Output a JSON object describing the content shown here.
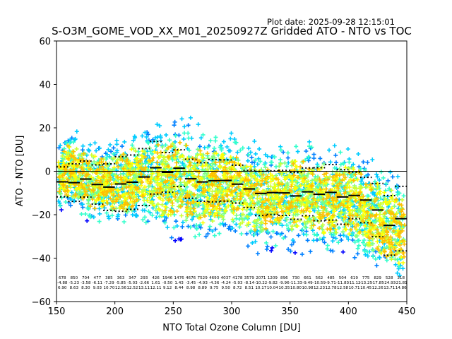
{
  "chart_data": {
    "type": "scatter",
    "title": "S-O3M_GOME_VOD_XX_M01_20250927Z Gridded ATO - NTO vs TOC",
    "subtitle": "Plot date: 2025-09-28 12:15:01",
    "xlabel": "NTO Total Ozone Column [DU]",
    "ylabel": "ATO - NTO [DU]",
    "xlim": [
      150,
      450
    ],
    "ylim": [
      -60,
      60
    ],
    "xticks": [
      150,
      200,
      250,
      300,
      350,
      400,
      450
    ],
    "yticks": [
      -60,
      -40,
      -20,
      0,
      20,
      40,
      60
    ],
    "grid": false,
    "reference_line_y": 0,
    "bin_width": 10,
    "bins": {
      "x_start": [
        150,
        160,
        170,
        180,
        190,
        200,
        210,
        220,
        230,
        240,
        250,
        260,
        270,
        280,
        290,
        300,
        310,
        320,
        330,
        340,
        350,
        360,
        370,
        380,
        390,
        400,
        410,
        420,
        430,
        440
      ],
      "counts": [
        "678",
        "850",
        "704",
        "477",
        "385",
        "363",
        "347",
        "293",
        "426",
        "1946",
        "1476",
        "4676",
        "7529",
        "4693",
        "4037",
        "4178",
        "3579",
        "2071",
        "1209",
        "896",
        "730",
        "661",
        "562",
        "485",
        "504",
        "619",
        "775",
        "829",
        "528",
        "318"
      ],
      "means": [
        "-4.88",
        "-5.23",
        "-3.58",
        "-6.11",
        "-7.29",
        "-5.85",
        "-5.03",
        "-2.66",
        "1.61",
        "-0.50",
        "1.43",
        "-3.45",
        "-4.93",
        "-4.36",
        "-4.24",
        "-5.93",
        "-8.14",
        "-10.22",
        "-9.82",
        "-9.96",
        "-11.33",
        "-9.49",
        "-10.59",
        "-9.71",
        "-11.83",
        "-11.12",
        "-13.25",
        "-17.85",
        "-24.93",
        "-21.81"
      ],
      "stds": [
        "6.90",
        "8.63",
        "8.30",
        "9.03",
        "10.70",
        "12.56",
        "12.52",
        "13.11",
        "12.11",
        "9.12",
        "8.44",
        "8.98",
        "8.89",
        "9.75",
        "9.50",
        "8.72",
        "8.51",
        "10.17",
        "10.04",
        "10.35",
        "10.80",
        "10.98",
        "12.23",
        "12.78",
        "12.58",
        "10.71",
        "10.45",
        "12.26",
        "13.71",
        "14.86"
      ]
    },
    "scatter_cloud": {
      "description": "Gridded ATO-NTO differences plotted as '+' markers, colour-coded (jet-like colormap)",
      "colormap": [
        "#0000ff",
        "#0080ff",
        "#00ccff",
        "#33ffcc",
        "#80ff80",
        "#ccff33",
        "#ffff00",
        "#ffc000"
      ],
      "envelope_upper": [
        [
          150,
          15
        ],
        [
          160,
          22
        ],
        [
          170,
          20
        ],
        [
          180,
          18
        ],
        [
          190,
          16
        ],
        [
          200,
          17
        ],
        [
          210,
          20
        ],
        [
          220,
          24
        ],
        [
          230,
          24
        ],
        [
          240,
          26
        ],
        [
          250,
          30
        ],
        [
          260,
          30
        ],
        [
          270,
          26
        ],
        [
          280,
          22
        ],
        [
          290,
          22
        ],
        [
          300,
          22
        ],
        [
          310,
          18
        ],
        [
          320,
          16
        ],
        [
          330,
          14
        ],
        [
          340,
          16
        ],
        [
          350,
          18
        ],
        [
          360,
          18
        ],
        [
          370,
          17
        ],
        [
          380,
          17
        ],
        [
          390,
          16
        ],
        [
          400,
          16
        ],
        [
          410,
          13
        ],
        [
          420,
          11
        ],
        [
          430,
          8
        ],
        [
          440,
          4
        ],
        [
          450,
          0
        ]
      ],
      "envelope_lower": [
        [
          150,
          -20
        ],
        [
          160,
          -22
        ],
        [
          170,
          -24
        ],
        [
          180,
          -27
        ],
        [
          190,
          -28
        ],
        [
          200,
          -30
        ],
        [
          210,
          -30
        ],
        [
          220,
          -29
        ],
        [
          230,
          -30
        ],
        [
          240,
          -34
        ],
        [
          250,
          -36
        ],
        [
          260,
          -38
        ],
        [
          270,
          -38
        ],
        [
          280,
          -38
        ],
        [
          290,
          -36
        ],
        [
          300,
          -36
        ],
        [
          310,
          -38
        ],
        [
          320,
          -40
        ],
        [
          330,
          -40
        ],
        [
          340,
          -40
        ],
        [
          350,
          -40
        ],
        [
          360,
          -40
        ],
        [
          370,
          -40
        ],
        [
          380,
          -42
        ],
        [
          390,
          -42
        ],
        [
          400,
          -42
        ],
        [
          410,
          -45
        ],
        [
          420,
          -50
        ],
        [
          430,
          -52
        ],
        [
          440,
          -55
        ],
        [
          450,
          -58
        ]
      ]
    }
  }
}
